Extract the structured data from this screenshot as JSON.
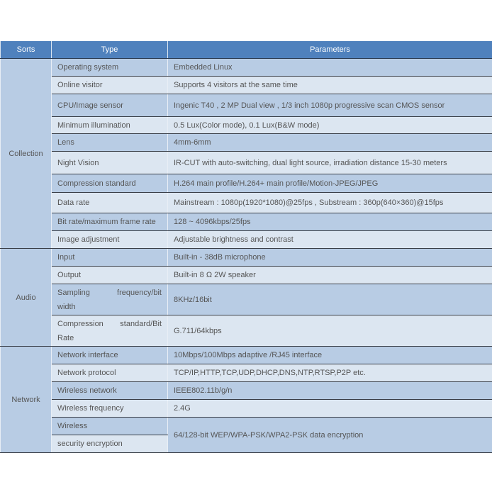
{
  "header": {
    "sorts": "Sorts",
    "type": "Type",
    "parameters": "Parameters"
  },
  "groups": [
    {
      "sort": "Collection",
      "rows": [
        {
          "type": "Operating system",
          "value": "Embedded Linux"
        },
        {
          "type": "Online visitor",
          "value": "Supports 4 visitors at the same time"
        },
        {
          "type": "CPU/Image sensor",
          "value": "Ingenic T40 , 2 MP Dual view , 1/3 inch 1080p progressive scan CMOS sensor"
        },
        {
          "type": "Minimum illumination",
          "value": "0.5 Lux(Color mode), 0.1 Lux(B&W mode)"
        },
        {
          "type": "Lens",
          "value": "4mm-6mm"
        },
        {
          "type": "Night Vision",
          "value": "IR-CUT with auto-switching, dual light source, irradiation distance 15-30 meters"
        },
        {
          "type": "Compression standard",
          "value": "H.264 main profile/H.264+ main profile/Motion-JPEG/JPEG"
        },
        {
          "type": "Data rate",
          "value": "Mainstream : 1080p(1920*1080)@25fps ,  Substream : 360p(640×360)@15fps"
        },
        {
          "type": "Bit rate/maximum frame rate",
          "value": "128 ~ 4096kbps/25fps"
        },
        {
          "type": "Image adjustment",
          "value": "Adjustable brightness and contrast"
        }
      ]
    },
    {
      "sort": "Audio",
      "rows": [
        {
          "type": "Input",
          "value": "Built-in - 38dB microphone"
        },
        {
          "type": "Output",
          "value": "Built-in 8 Ω 2W speaker"
        },
        {
          "type_lines": [
            "Sampling frequency/bit",
            "width"
          ],
          "value": "8KHz/16bit"
        },
        {
          "type_lines": [
            "Compression standard/Bit",
            "Rate"
          ],
          "value": "G.711/64kbps"
        }
      ]
    },
    {
      "sort": "Network",
      "rows": [
        {
          "type": "Network interface",
          "value": "10Mbps/100Mbps adaptive /RJ45 interface"
        },
        {
          "type": "Network protocol",
          "value": "TCP/IP,HTTP,TCP,UDP,DHCP,DNS,NTP,RTSP,P2P etc."
        },
        {
          "type": "Wireless network",
          "value": "IEEE802.11b/g/n"
        },
        {
          "type": "Wireless frequency",
          "value": "2.4G"
        },
        {
          "type_split": [
            "Wireless",
            "security encryption"
          ],
          "value": "64/128-bit WEP/WPA-PSK/WPA2-PSK data encryption"
        }
      ]
    }
  ]
}
